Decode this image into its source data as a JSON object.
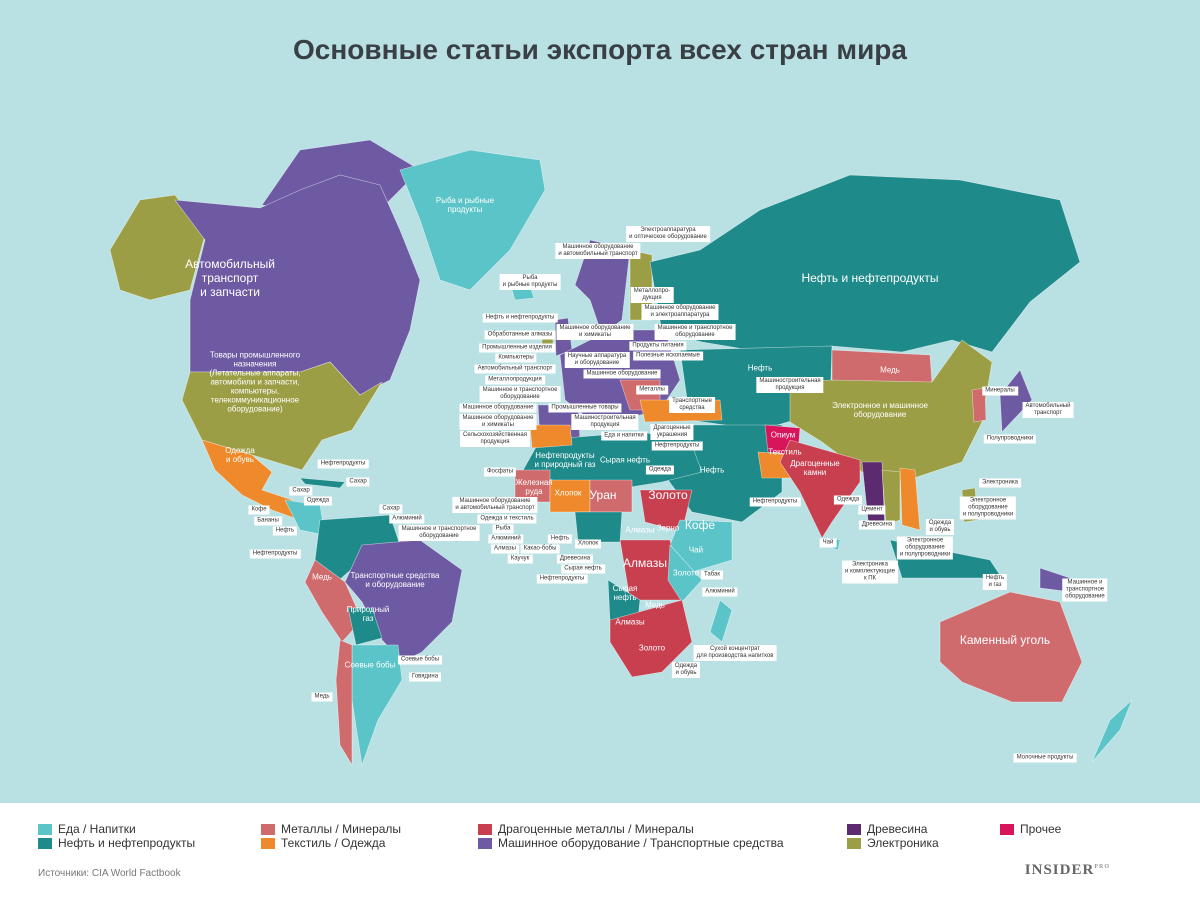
{
  "title": "Основные статьи экспорта всех стран мира",
  "colors": {
    "background": "#b9e1e4",
    "food": "#5bc4c8",
    "oil": "#1f8a8a",
    "metals": "#cf6b6d",
    "textile": "#ee8a2b",
    "precious": "#c8404f",
    "machinery": "#6e5aa3",
    "wood": "#5c2a6e",
    "electronics": "#9c9e45",
    "other": "#d8145a"
  },
  "legend": [
    {
      "key": "food",
      "label": "Еда / Напитки"
    },
    {
      "key": "oil",
      "label": "Нефть и нефтепродукты"
    },
    {
      "key": "metals",
      "label": "Металлы / Минералы"
    },
    {
      "key": "textile",
      "label": "Текстиль / Одежда"
    },
    {
      "key": "precious",
      "label": "Драгоценные металлы / Минералы"
    },
    {
      "key": "machinery",
      "label": "Машинное оборудование / Транспортные средства"
    },
    {
      "key": "wood",
      "label": "Древесина"
    },
    {
      "key": "electronics",
      "label": "Электроника"
    },
    {
      "key": "other",
      "label": "Прочее"
    }
  ],
  "region_labels": [
    "Рыба и рыбные\nпродукты",
    "Автомобильный\nтранспорт\nи запчасти",
    "Товары промышленного\nназначения\n(Летательные аппараты,\nавтомобили и запчасти,\nкомпьютеры,\nтелекоммуникационное\nоборудование)",
    "Нефть и нефтепродукты",
    "Медь",
    "Электронное и машинное\nоборудование",
    "Каменный уголь",
    "Транспортные средства\nи оборудование",
    "Одежда\nи обувь",
    "Нефть",
    "Драгоценные\nкамни",
    "Золото",
    "Алмазы",
    "Алмазы",
    "Кофе",
    "Уран",
    "Хлопок",
    "Сырая нефть",
    "Нефтепродукты\nи природный газ",
    "Опиум",
    "Текстиль",
    "Природный\nгаз",
    "Соевые бобы",
    "Медь",
    "Зерно",
    "Чай",
    "Медь",
    "Сырая\nнефть",
    "Алмазы",
    "Золото",
    "Золото",
    "Нефть",
    "Железная\nруда"
  ],
  "callouts": [
    "Электроаппаратура\nи оптическое оборудование",
    "Машинное оборудование\nи автомобильный транспорт",
    "Рыба\nи рыбные продукты",
    "Нефть и нефтепродукты",
    "Машинное оборудование\nи электроаппаратура",
    "Обработанные алмазы",
    "Машинное оборудование\nи химикаты",
    "Продукты питания",
    "Промышленные изделия",
    "Научные аппаратура\nи оборудование",
    "Полезные ископаемые",
    "Компьютеры",
    "Машинное оборудование",
    "Машинное и транспортное\nоборудование",
    "Автомобильный транспорт",
    "Металлопродукция",
    "Машинное и транспортное\nоборудование",
    "Машинное оборудование",
    "Машинное оборудование\nи химикаты",
    "Сельскохозяйственная\nпродукция",
    "Машинное оборудование\nи автомобильный транспорт",
    "Одежда и текстиль",
    "Промышленные товары",
    "Машиностроительная\nпродукция",
    "Еда и напитки",
    "Транспортные\nсредства",
    "Драгоценные\nукрашения",
    "Нефтепродукты",
    "Одежда",
    "Машиностроительная\nпродукция",
    "Минералы",
    "Автомобильный\nтранспорт",
    "Полупроводники",
    "Электроника",
    "Электронное\nоборудование\nи полупроводники",
    "Одежда\nи обувь",
    "Электронное\nоборудование\nи полупроводники",
    "Электроника\nи комплектующие\nк ПК",
    "Древесина",
    "Цемент",
    "Одежда",
    "Чай",
    "Нефтепродукты",
    "Нефть\nи газ",
    "Машинное и\nтранспортное\nоборудование",
    "Молочные продукты",
    "Нефтепродукты",
    "Сахар",
    "Сахар",
    "Одежда",
    "Кофе",
    "Бананы",
    "Нефть",
    "Сахар",
    "Алюминий",
    "Машинное и транспортное\nоборудование",
    "Нефтепродукты",
    "Медь",
    "Соевые бобы",
    "Говядина",
    "Фосфаты",
    "Рыба",
    "Алюминий",
    "Алмазы",
    "Каучук",
    "Какао-бобы",
    "Нефть",
    "Хлопок",
    "Древесина",
    "Сырая нефть",
    "Нефтепродукты",
    "Табак",
    "Алюминий",
    "Сухой концентрат\nдля производства напитков",
    "Одежда\nи обувь",
    "Металлы",
    "Металлопро-\nдукция"
  ],
  "footer": {
    "source": "Источники: CIA World Factbook",
    "logo": "INSIDER",
    "logo_sup": "PRO"
  }
}
